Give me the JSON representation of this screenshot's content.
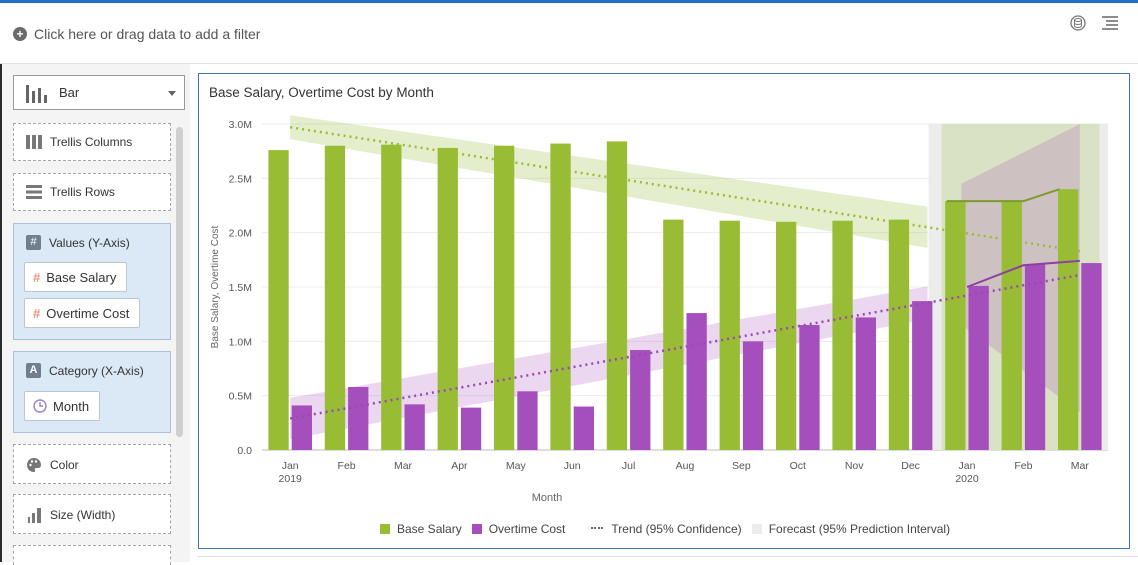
{
  "filter_bar": {
    "add_filter_label": "Click here or drag data to add a filter"
  },
  "toolbar": {
    "icons": [
      "db-icon",
      "properties-list-icon"
    ]
  },
  "chart_type_select": {
    "value": "Bar"
  },
  "grammar": {
    "trellis_columns": "Trellis Columns",
    "trellis_rows": "Trellis Rows",
    "values_axis": {
      "label": "Values (Y-Axis)",
      "items": [
        "Base Salary",
        "Overtime Cost"
      ]
    },
    "category_axis": {
      "label": "Category (X-Axis)",
      "items": [
        "Month"
      ]
    },
    "color": "Color",
    "size": "Size (Width)"
  },
  "colors": {
    "base_salary": "#98bd35",
    "overtime": "#a44fbc",
    "accent": "#1f6fc5",
    "forecast_band": "#ececec"
  },
  "chart_data": {
    "type": "bar",
    "title": "Base Salary, Overtime Cost by Month",
    "xlabel": "Month",
    "ylabel": "Base Salary, Overtime Cost",
    "ylim": [
      0,
      3000000
    ],
    "yticks": [
      "0.0",
      "0.5M",
      "1.0M",
      "1.5M",
      "2.0M",
      "2.5M",
      "3.0M"
    ],
    "yticks_values": [
      0,
      500000,
      1000000,
      1500000,
      2000000,
      2500000,
      3000000
    ],
    "categories": [
      {
        "label": "Jan",
        "sub": "2019"
      },
      {
        "label": "Feb",
        "sub": ""
      },
      {
        "label": "Mar",
        "sub": ""
      },
      {
        "label": "Apr",
        "sub": ""
      },
      {
        "label": "May",
        "sub": ""
      },
      {
        "label": "Jun",
        "sub": ""
      },
      {
        "label": "Jul",
        "sub": ""
      },
      {
        "label": "Aug",
        "sub": ""
      },
      {
        "label": "Sep",
        "sub": ""
      },
      {
        "label": "Oct",
        "sub": ""
      },
      {
        "label": "Nov",
        "sub": ""
      },
      {
        "label": "Dec",
        "sub": ""
      },
      {
        "label": "Jan",
        "sub": "2020"
      },
      {
        "label": "Feb",
        "sub": ""
      },
      {
        "label": "Mar",
        "sub": ""
      }
    ],
    "series": [
      {
        "name": "Base Salary",
        "values": [
          2760000,
          2800000,
          2810000,
          2780000,
          2800000,
          2820000,
          2840000,
          2120000,
          2110000,
          2100000,
          2110000,
          2120000,
          2290000,
          2290000,
          2400000
        ]
      },
      {
        "name": "Overtime Cost",
        "values": [
          410000,
          580000,
          420000,
          390000,
          540000,
          400000,
          920000,
          1260000,
          1000000,
          1150000,
          1220000,
          1370000,
          1510000,
          1710000,
          1720000
        ]
      }
    ],
    "forecast_start_index": 12,
    "trend": {
      "base_salary": {
        "start": 2970000,
        "end": 1830000
      },
      "overtime": {
        "start": 290000,
        "end": 1610000
      }
    },
    "legend": [
      "Base Salary",
      "Overtime Cost",
      "Trend (95% Confidence)",
      "Forecast (95% Prediction Interval)"
    ],
    "legend_position": "bottom"
  }
}
